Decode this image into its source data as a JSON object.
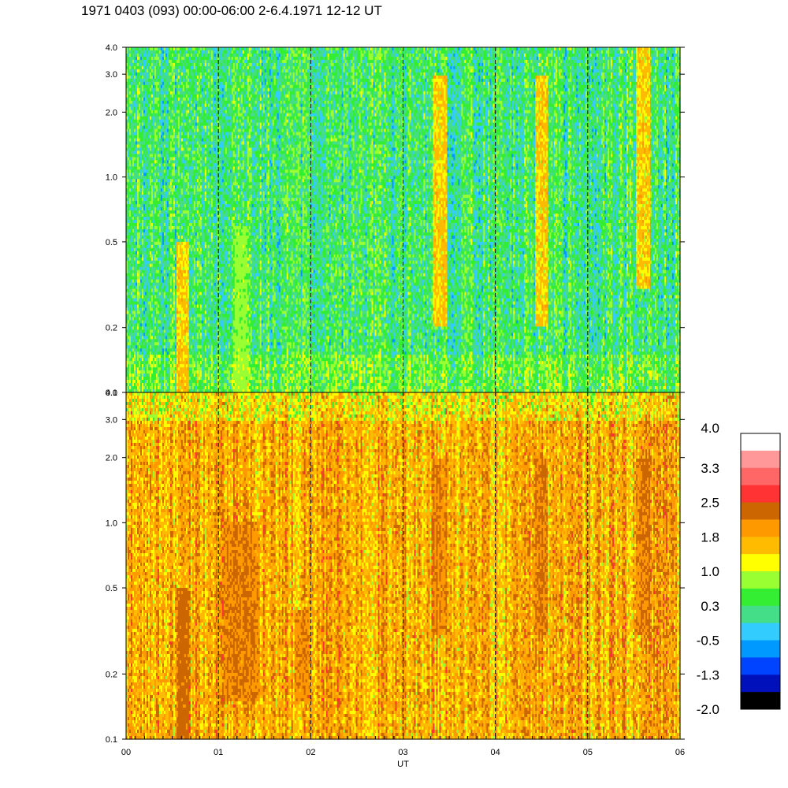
{
  "title": "1971 0403 (093) 00:00-06:00 2-6.4.1971 12-12 UT",
  "chart_data": {
    "type": "heatmap",
    "xlabel": "UT",
    "x_tick_labels": [
      "00",
      "01",
      "02",
      "03",
      "04",
      "05",
      "06"
    ],
    "xlim": [
      0,
      6
    ],
    "x_unit": "hours",
    "vertical_dashed_lines_at": [
      1,
      2,
      3,
      4,
      5
    ],
    "y_scale": "log",
    "ylim": [
      0.1,
      4.0
    ],
    "y_tick_labels": [
      "0.1",
      "0.2",
      "0.5",
      "1.0",
      "2.0",
      "3.0",
      "4.0"
    ],
    "y_tick_values": [
      0.1,
      0.2,
      0.5,
      1.0,
      2.0,
      3.0,
      4.0
    ],
    "panels": [
      {
        "position": "upper",
        "dominant_color_range": [
          -0.5,
          1.0
        ],
        "notable_features": [
          {
            "x_hours": 0.62,
            "y_range": [
              0.1,
              0.5
            ],
            "level": 1.8
          },
          {
            "x_hours": 1.25,
            "y_range": [
              0.1,
              0.6
            ],
            "level": 1.0
          },
          {
            "x_hours": 3.4,
            "y_range": [
              0.2,
              3.0
            ],
            "level": 1.8
          },
          {
            "x_hours": 4.5,
            "y_range": [
              0.2,
              3.0
            ],
            "level": 1.8
          },
          {
            "x_hours": 5.6,
            "y_range": [
              0.3,
              4.0
            ],
            "level": 1.8
          }
        ]
      },
      {
        "position": "lower",
        "dominant_color_range": [
          1.0,
          2.5
        ],
        "notable_features": [
          {
            "x_hours": 0.62,
            "y_range": [
              0.1,
              0.5
            ],
            "level": 2.5
          },
          {
            "x_hours": 1.25,
            "y_range": [
              0.15,
              1.0
            ],
            "level": 2.2
          },
          {
            "x_hours": 1.9,
            "y_range": [
              0.15,
              0.4
            ],
            "level": 2.2
          },
          {
            "x_hours": 3.4,
            "y_range": [
              0.3,
              2.0
            ],
            "level": 2.2
          },
          {
            "x_hours": 4.5,
            "y_range": [
              0.3,
              2.0
            ],
            "level": 2.2
          },
          {
            "x_hours": 5.6,
            "y_range": [
              0.3,
              2.0
            ],
            "level": 2.2
          }
        ]
      }
    ],
    "colorbar": {
      "labels": [
        "4.0",
        "3.3",
        "2.5",
        "1.8",
        "1.0",
        "0.3",
        "-0.5",
        "-1.3",
        "-2.0"
      ],
      "colors": [
        "#ffffff",
        "#ff9999",
        "#ff6666",
        "#ff3333",
        "#cc6600",
        "#ff9900",
        "#ffbb00",
        "#ffff00",
        "#99ff33",
        "#33ee33",
        "#44dd88",
        "#33ccff",
        "#0099ff",
        "#0044ff",
        "#0011bb",
        "#000000"
      ]
    }
  }
}
